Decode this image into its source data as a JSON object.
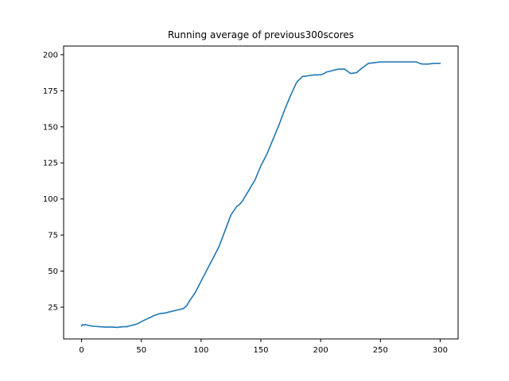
{
  "chart_data": {
    "type": "line",
    "title": "Running average of previous300scores",
    "xlabel": "",
    "ylabel": "",
    "xlim": [
      -15,
      315
    ],
    "ylim": [
      3,
      206
    ],
    "xticks": [
      0,
      50,
      100,
      150,
      200,
      250,
      300
    ],
    "yticks": [
      25,
      50,
      75,
      100,
      125,
      150,
      175,
      200
    ],
    "grid": false,
    "legend": "none",
    "line_color": "#1f77b4",
    "series": [
      {
        "x": [
          0,
          1,
          2,
          3,
          5,
          8,
          10,
          15,
          20,
          25,
          30,
          35,
          38,
          40,
          45,
          48,
          50,
          55,
          58,
          60,
          65,
          70,
          75,
          80,
          85,
          88,
          90,
          95,
          100,
          105,
          110,
          115,
          120,
          125,
          130,
          132,
          135,
          137,
          140,
          142,
          145,
          150,
          155,
          160,
          165,
          170,
          175,
          180,
          185,
          187,
          190,
          195,
          200,
          203,
          205,
          210,
          215,
          220,
          225,
          230,
          235,
          240,
          245,
          250,
          255,
          260,
          265,
          270,
          275,
          280,
          283,
          285,
          290,
          295,
          300
        ],
        "y": [
          12,
          13,
          12.5,
          13,
          12.5,
          12,
          11.8,
          11.5,
          11.2,
          11.2,
          11,
          11.5,
          11.5,
          12,
          13,
          14,
          15,
          17,
          18,
          19,
          20.5,
          21,
          22,
          23,
          24,
          26,
          29,
          35,
          43,
          51,
          59,
          67,
          78,
          89,
          95,
          96,
          99,
          102,
          106,
          109,
          113,
          123,
          131,
          141,
          151,
          162,
          172,
          181,
          185,
          185,
          185.5,
          186,
          186,
          187,
          188,
          189,
          190,
          190,
          187,
          187.5,
          191,
          194,
          194.5,
          195,
          195,
          195,
          195,
          195,
          195,
          195,
          194,
          193.5,
          193.5,
          194,
          194
        ]
      }
    ]
  }
}
